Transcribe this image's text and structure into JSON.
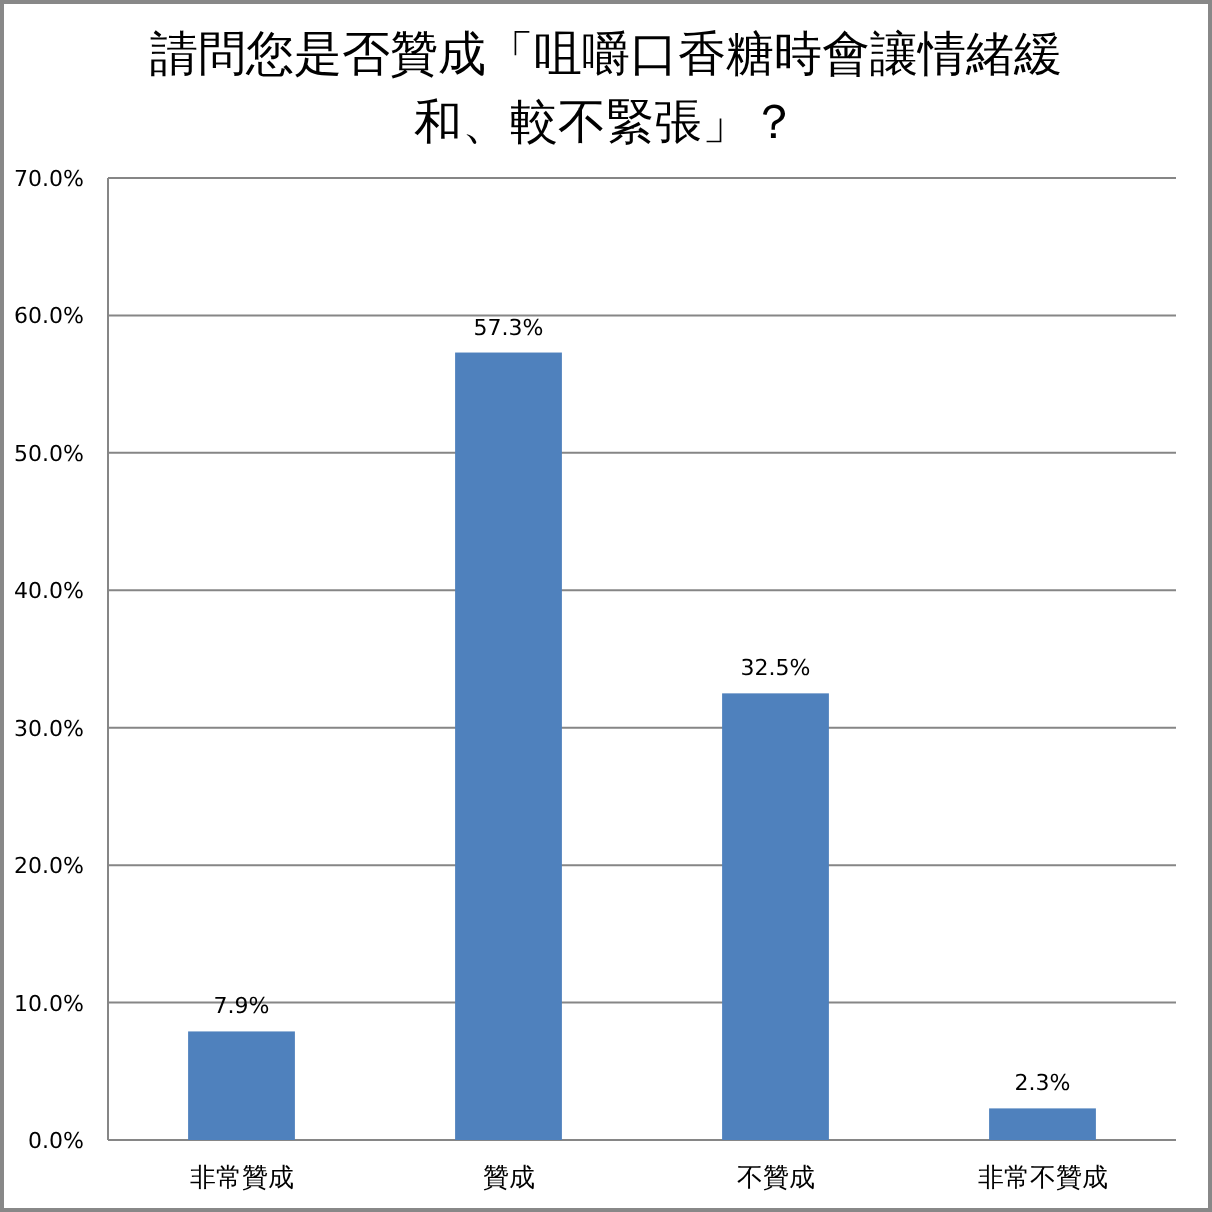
{
  "chart_data": {
    "type": "bar",
    "title": "請問您是否贊成「咀嚼口香糖時會讓情緒緩和、較不緊張」？",
    "categories": [
      "非常贊成",
      "贊成",
      "不贊成",
      "非常不贊成"
    ],
    "values": [
      7.9,
      57.3,
      32.5,
      2.3
    ],
    "color": "#4f81bd",
    "value_labels": [
      "7.9%",
      "57.3%",
      "32.5%",
      "2.3%"
    ],
    "ylim": [
      0,
      70
    ],
    "yticks": [
      {
        "value": 0,
        "label": "0.0%"
      },
      {
        "value": 10,
        "label": "10.0%"
      },
      {
        "value": 20,
        "label": "20.0%"
      },
      {
        "value": 30,
        "label": "30.0%"
      },
      {
        "value": 40,
        "label": "40.0%"
      },
      {
        "value": 50,
        "label": "50.0%"
      },
      {
        "value": 60,
        "label": "60.0%"
      },
      {
        "value": 70,
        "label": "70.0%"
      }
    ],
    "grid": "y"
  }
}
